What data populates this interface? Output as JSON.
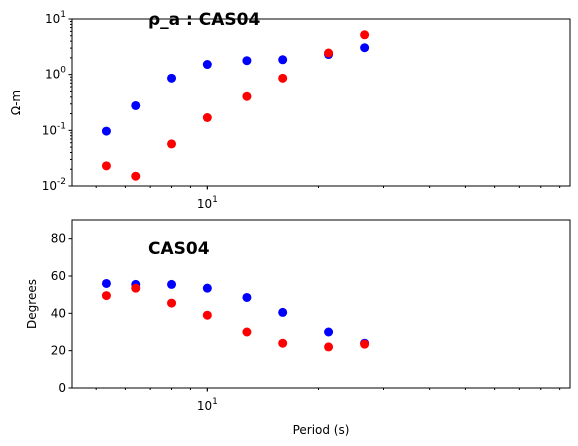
{
  "chart_data": [
    {
      "type": "scatter",
      "title": "ρ_a : CAS04",
      "xlabel": "",
      "ylabel": "Ω-m",
      "xscale": "log",
      "yscale": "log",
      "xlim": [
        4.3,
        96
      ],
      "ylim": [
        0.01,
        10
      ],
      "x_ticks": [
        {
          "value": 10,
          "label": "10^1"
        }
      ],
      "y_ticks": [
        {
          "value": 0.01,
          "label": "10^-2"
        },
        {
          "value": 0.1,
          "label": "10^-1"
        },
        {
          "value": 1,
          "label": "10^0"
        },
        {
          "value": 10,
          "label": "10^1"
        }
      ],
      "grid": false,
      "series": [
        {
          "color": "#0000ff",
          "points": [
            {
              "x": 5.33,
              "y": 0.097
            },
            {
              "x": 6.4,
              "y": 0.28
            },
            {
              "x": 8.0,
              "y": 0.86
            },
            {
              "x": 10.0,
              "y": 1.52
            },
            {
              "x": 12.8,
              "y": 1.78
            },
            {
              "x": 16.0,
              "y": 1.85
            },
            {
              "x": 21.3,
              "y": 2.3
            },
            {
              "x": 26.67,
              "y": 3.05
            }
          ]
        },
        {
          "color": "#ff0000",
          "points": [
            {
              "x": 5.33,
              "y": 0.023
            },
            {
              "x": 6.4,
              "y": 0.015
            },
            {
              "x": 8.0,
              "y": 0.057
            },
            {
              "x": 10.0,
              "y": 0.17
            },
            {
              "x": 12.8,
              "y": 0.41
            },
            {
              "x": 16.0,
              "y": 0.86
            },
            {
              "x": 21.3,
              "y": 2.45
            },
            {
              "x": 26.67,
              "y": 5.2
            }
          ]
        }
      ]
    },
    {
      "type": "scatter",
      "title": "CAS04",
      "xlabel": "Period (s)",
      "ylabel": "Degrees",
      "xscale": "log",
      "yscale": "linear",
      "xlim": [
        4.3,
        96
      ],
      "ylim": [
        0,
        90
      ],
      "x_ticks": [
        {
          "value": 10,
          "label": "10^1"
        }
      ],
      "y_ticks": [
        {
          "value": 0,
          "label": "0"
        },
        {
          "value": 20,
          "label": "20"
        },
        {
          "value": 40,
          "label": "40"
        },
        {
          "value": 60,
          "label": "60"
        },
        {
          "value": 80,
          "label": "80"
        }
      ],
      "grid": false,
      "series": [
        {
          "color": "#0000ff",
          "points": [
            {
              "x": 5.33,
              "y": 56
            },
            {
              "x": 6.4,
              "y": 55.5
            },
            {
              "x": 8.0,
              "y": 55.5
            },
            {
              "x": 10.0,
              "y": 53.5
            },
            {
              "x": 12.8,
              "y": 48.5
            },
            {
              "x": 16.0,
              "y": 40.5
            },
            {
              "x": 21.3,
              "y": 30
            },
            {
              "x": 26.67,
              "y": 24
            }
          ]
        },
        {
          "color": "#ff0000",
          "points": [
            {
              "x": 5.33,
              "y": 49.5
            },
            {
              "x": 6.4,
              "y": 53.5
            },
            {
              "x": 8.0,
              "y": 45.5
            },
            {
              "x": 10.0,
              "y": 39
            },
            {
              "x": 12.8,
              "y": 30
            },
            {
              "x": 16.0,
              "y": 24
            },
            {
              "x": 21.3,
              "y": 22
            },
            {
              "x": 26.67,
              "y": 23.5
            }
          ]
        }
      ]
    }
  ]
}
